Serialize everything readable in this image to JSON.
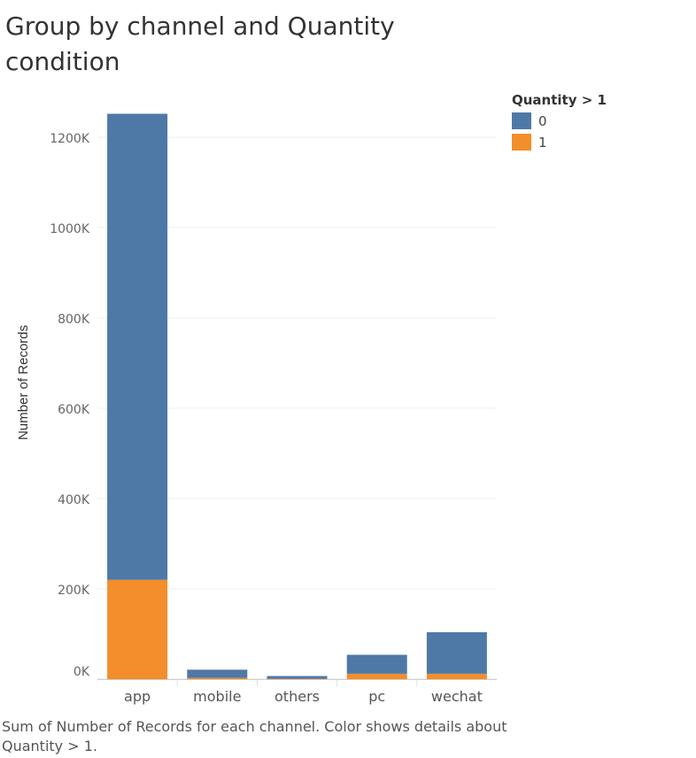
{
  "title": "Group by channel and Quantity condition",
  "legend": {
    "title": "Quantity > 1",
    "items": [
      {
        "label": "0",
        "color": "#4e79a7"
      },
      {
        "label": "1",
        "color": "#f28e2b"
      }
    ]
  },
  "caption": "Sum of Number of Records for each channel.  Color shows details about Quantity > 1.",
  "chart_data": {
    "type": "bar",
    "stacked": true,
    "categories": [
      "app",
      "mobile",
      "others",
      "pc",
      "wechat"
    ],
    "series": [
      {
        "name": "1",
        "color": "#f28e2b",
        "values": [
          220000,
          3000,
          1000,
          12000,
          12000
        ]
      },
      {
        "name": "0",
        "color": "#4e79a7",
        "values": [
          1032000,
          18000,
          6000,
          42000,
          92000
        ]
      }
    ],
    "ylabel": "Number of Records",
    "xlabel": "",
    "ylim": [
      0,
      1260000
    ],
    "yticks": [
      0,
      200000,
      400000,
      600000,
      800000,
      1000000,
      1200000
    ],
    "ytick_labels": [
      "0K",
      "200K",
      "400K",
      "600K",
      "800K",
      "1000K",
      "1200K"
    ],
    "grid": true
  }
}
